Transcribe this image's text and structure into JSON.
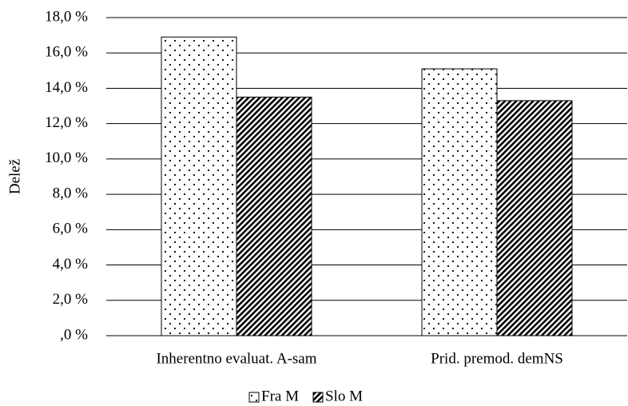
{
  "chart_data": {
    "type": "bar",
    "ylabel": "Delež",
    "categories": [
      "Inherentno evaluat. A-sam",
      "Prid. premod. demNS"
    ],
    "series": [
      {
        "name": "Fra M",
        "pattern": "dots",
        "values": [
          16.9,
          15.1
        ]
      },
      {
        "name": "Slo M",
        "pattern": "stripes",
        "values": [
          13.5,
          13.3
        ]
      }
    ],
    "ylim": [
      0,
      18
    ],
    "yticks": [
      {
        "value": 0,
        "label": ",0 %"
      },
      {
        "value": 2,
        "label": "2,0 %"
      },
      {
        "value": 4,
        "label": "4,0 %"
      },
      {
        "value": 6,
        "label": "6,0 %"
      },
      {
        "value": 8,
        "label": "8,0 %"
      },
      {
        "value": 10,
        "label": "10,0 %"
      },
      {
        "value": 12,
        "label": "12,0 %"
      },
      {
        "value": 14,
        "label": "14,0 %"
      },
      {
        "value": 16,
        "label": "16,0 %"
      },
      {
        "value": 18,
        "label": "18,0 %"
      }
    ],
    "grid": true,
    "legend": "bottom"
  }
}
